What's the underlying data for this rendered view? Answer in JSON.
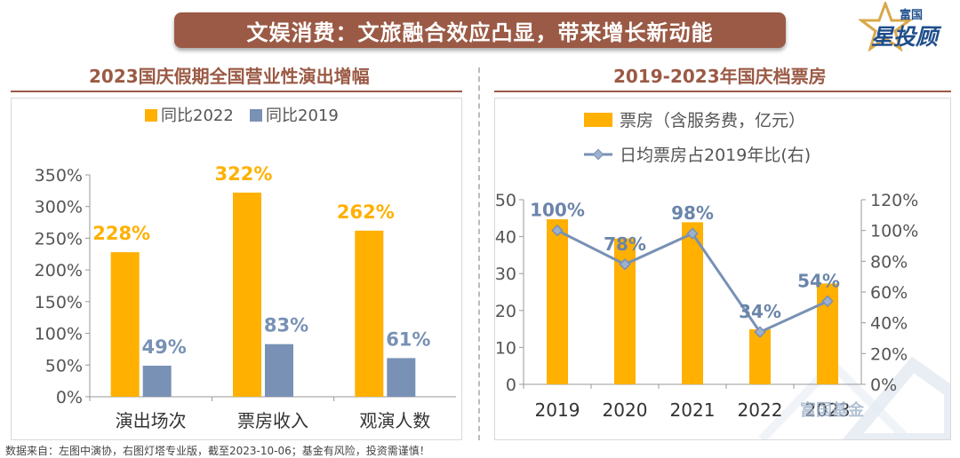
{
  "banner_title": "文娱消费：文旅融合效应凸显，带来增长新动能",
  "logo": {
    "small": "富国",
    "big": "星投顾"
  },
  "left_panel_title": "2023国庆假期全国营业性演出增幅",
  "right_panel_title": "2019-2023年国庆档票房",
  "source_note": "数据来自：左图中演协，右图灯塔专业版，截至2023-10-06；基金有风险，投资需谨慎！",
  "watermark_text": "富国基金",
  "colors": {
    "orange": "#FFB000",
    "blue": "#7891B5",
    "brown": "#9b5a45",
    "navy": "#1f4e8c"
  },
  "chart_data": [
    {
      "type": "bar",
      "title": "2023国庆假期全国营业性演出增幅",
      "categories": [
        "演出场次",
        "票房收入",
        "观演人数"
      ],
      "series": [
        {
          "name": "同比2022",
          "values": [
            228,
            322,
            262
          ],
          "labels": [
            "228%",
            "322%",
            "262%"
          ],
          "color": "#FFB000"
        },
        {
          "name": "同比2019",
          "values": [
            49,
            83,
            61
          ],
          "labels": [
            "49%",
            "83%",
            "61%"
          ],
          "color": "#7891B5"
        }
      ],
      "ylim": [
        0,
        350
      ],
      "yticks": [
        "0%",
        "50%",
        "100%",
        "150%",
        "200%",
        "250%",
        "300%",
        "350%"
      ],
      "legend": "top"
    },
    {
      "type": "bar",
      "title": "2019-2023年国庆档票房",
      "categories": [
        "2019",
        "2020",
        "2021",
        "2022",
        "2023"
      ],
      "series": [
        {
          "name": "票房（含服务费，亿元）",
          "type": "bar",
          "axis": "left",
          "values": [
            44.7,
            39.5,
            43.9,
            14.9,
            27.3
          ],
          "color": "#FFB000"
        },
        {
          "name": "日均票房占2019年比(右)",
          "type": "line",
          "axis": "right",
          "values": [
            100,
            78,
            98,
            34,
            54
          ],
          "labels": [
            "100%",
            "78%",
            "98%",
            "34%",
            "54%"
          ],
          "color": "#7891B5"
        }
      ],
      "ylim_left": [
        0,
        50
      ],
      "yticks_left": [
        "0",
        "10",
        "20",
        "30",
        "40",
        "50"
      ],
      "ylim_right": [
        0,
        120
      ],
      "yticks_right": [
        "0%",
        "20%",
        "40%",
        "60%",
        "80%",
        "100%",
        "120%"
      ],
      "legend": "top"
    }
  ]
}
